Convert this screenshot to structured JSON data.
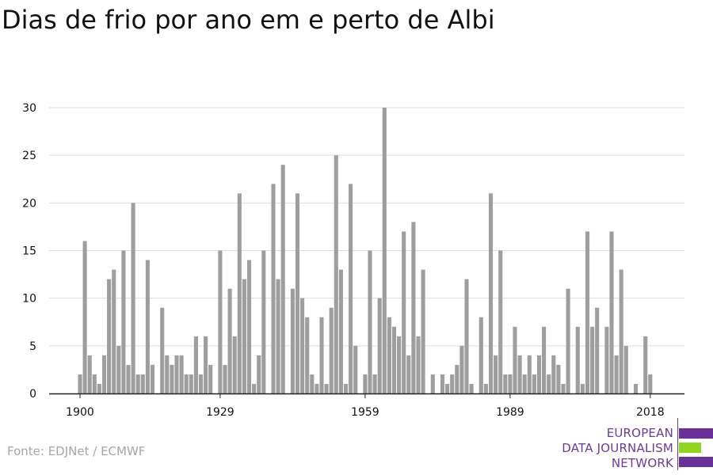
{
  "title": "Dias de frio por ano em e perto de Albi",
  "source": "Fonte: EDJNet / ECMWF",
  "logo": {
    "lines": [
      "EUROPEAN",
      "DATA JOURNALISM",
      "NETWORK"
    ],
    "colors": {
      "purple": "#6b2f9a",
      "green": "#8fd61f"
    }
  },
  "colors": {
    "bar": "#9e9e9e",
    "grid": "#dddddd",
    "axis": "#222222",
    "text": "#111111"
  },
  "chart_data": {
    "type": "bar",
    "title": "Dias de frio por ano em e perto de Albi",
    "xlabel": "",
    "ylabel": "",
    "x_ticks": [
      1900,
      1929,
      1959,
      1989,
      2018
    ],
    "y_ticks": [
      0,
      5,
      10,
      15,
      20,
      25,
      30
    ],
    "ylim": [
      0,
      30
    ],
    "xlim": [
      1900,
      2020
    ],
    "grid": true,
    "categories": [
      1900,
      1901,
      1902,
      1903,
      1904,
      1905,
      1906,
      1907,
      1908,
      1909,
      1910,
      1911,
      1912,
      1913,
      1914,
      1915,
      1916,
      1917,
      1918,
      1919,
      1920,
      1921,
      1922,
      1923,
      1924,
      1925,
      1926,
      1927,
      1928,
      1929,
      1930,
      1931,
      1932,
      1933,
      1934,
      1935,
      1936,
      1937,
      1938,
      1939,
      1940,
      1941,
      1942,
      1943,
      1944,
      1945,
      1946,
      1947,
      1948,
      1949,
      1950,
      1951,
      1952,
      1953,
      1954,
      1955,
      1956,
      1957,
      1958,
      1959,
      1960,
      1961,
      1962,
      1963,
      1964,
      1965,
      1966,
      1967,
      1968,
      1969,
      1970,
      1971,
      1972,
      1973,
      1974,
      1975,
      1976,
      1977,
      1978,
      1979,
      1980,
      1981,
      1982,
      1983,
      1984,
      1985,
      1986,
      1987,
      1988,
      1989,
      1990,
      1991,
      1992,
      1993,
      1994,
      1995,
      1996,
      1997,
      1998,
      1999,
      2000,
      2001,
      2002,
      2003,
      2004,
      2005,
      2006,
      2007,
      2008,
      2009,
      2010,
      2011,
      2012,
      2013,
      2014,
      2015,
      2016,
      2017,
      2018,
      2019,
      2020
    ],
    "values": [
      2,
      16,
      4,
      2,
      1,
      4,
      12,
      13,
      5,
      15,
      3,
      20,
      2,
      2,
      14,
      3,
      0,
      9,
      4,
      3,
      4,
      4,
      2,
      2,
      6,
      2,
      6,
      3,
      0,
      15,
      3,
      11,
      6,
      21,
      12,
      14,
      1,
      4,
      15,
      0,
      22,
      12,
      24,
      0,
      11,
      21,
      10,
      8,
      2,
      1,
      8,
      1,
      9,
      25,
      13,
      1,
      22,
      5,
      0,
      2,
      15,
      2,
      10,
      30,
      8,
      7,
      6,
      17,
      4,
      18,
      6,
      13,
      0,
      2,
      0,
      2,
      1,
      2,
      3,
      5,
      12,
      1,
      0,
      8,
      1,
      21,
      4,
      15,
      2,
      2,
      7,
      4,
      2,
      4,
      2,
      4,
      7,
      2,
      4,
      3,
      1,
      11,
      0,
      7,
      1,
      17,
      7,
      9,
      0,
      7,
      17,
      4,
      13,
      5,
      0,
      1,
      0,
      6,
      2,
      0,
      0
    ]
  }
}
